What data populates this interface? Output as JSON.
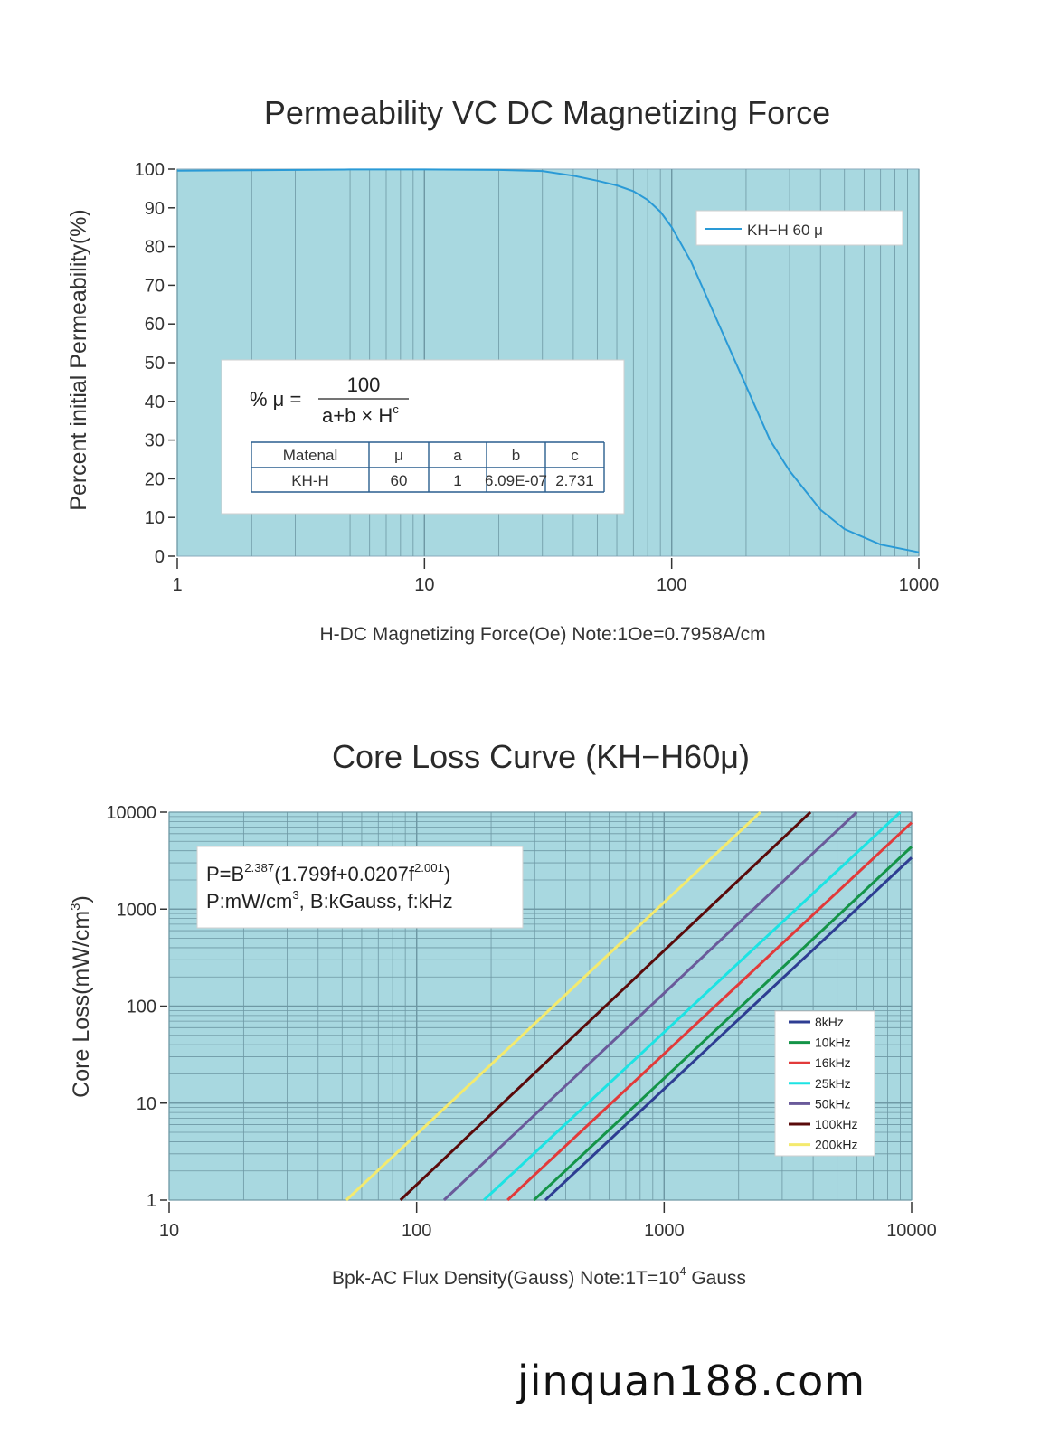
{
  "chart_data": [
    {
      "type": "line",
      "title": "Permeability VC DC Magnetizing Force",
      "xlabel": "H-DC Magnetizing Force(Oe)   Note:1Oe=0.7958A/cm",
      "ylabel": "Percent  initial  Permeability(%)",
      "xscale": "log",
      "xlim": [
        1,
        1000
      ],
      "ylim": [
        0,
        100
      ],
      "xticks": [
        "1",
        "10",
        "100",
        "1000"
      ],
      "yticks": [
        "100",
        "90",
        "80",
        "70",
        "60",
        "50",
        "40",
        "30",
        "20",
        "10",
        "0"
      ],
      "legend_position": "top-right",
      "series": [
        {
          "name": "KH−H 60 μ",
          "color": "#2a9ad6",
          "x": [
            1,
            2,
            5,
            10,
            20,
            30,
            40,
            50,
            60,
            70,
            80,
            90,
            100,
            120,
            150,
            200,
            250,
            300,
            400,
            500,
            700,
            1000
          ],
          "y": [
            99.6,
            99.7,
            99.9,
            99.9,
            99.8,
            99.5,
            98.3,
            97.0,
            95.8,
            94.3,
            92.0,
            89.0,
            85.0,
            76.0,
            62.0,
            44.0,
            30.0,
            22.0,
            12.0,
            7.0,
            3.0,
            1.0
          ]
        }
      ],
      "formula": {
        "lhs": "% μ  =",
        "numerator": "100",
        "denominator": "a+b × H",
        "denominator_sup": "c"
      },
      "param_table": {
        "headers": [
          "Matenal",
          "μ",
          "a",
          "b",
          "c"
        ],
        "row": [
          "KH-H",
          "60",
          "1",
          "6.09E-07",
          "2.731"
        ]
      }
    },
    {
      "type": "line",
      "title": "Core Loss Curve (KH−H60μ)",
      "xlabel": "Bpk-AC Flux Density(Gauss)  Note:1T=10",
      "xlabel_sup": "4",
      "xlabel_suffix": " Gauss",
      "ylabel": "Core Loss(mW/cm",
      "ylabel_sup": "3",
      "ylabel_suffix": ")",
      "xscale": "log",
      "yscale": "log",
      "xlim": [
        10,
        10000
      ],
      "ylim": [
        1,
        10000
      ],
      "xticks": [
        "10",
        "100",
        "1000",
        "10000"
      ],
      "yticks": [
        "10000",
        "1000",
        "100",
        "10",
        "1"
      ],
      "legend_position": "lower-right",
      "formula_lines": [
        {
          "parts": [
            "P=B",
            "2.387",
            "(1.799f+0.0207f",
            "2.001",
            ")"
          ]
        },
        {
          "parts": [
            "P:mW/cm",
            "3",
            ", B:kGauss, f:kHz"
          ]
        }
      ],
      "series": [
        {
          "name": "8kHz",
          "color": "#2e3d92",
          "x": [
            331,
            10000
          ],
          "y": [
            1,
            3400
          ]
        },
        {
          "name": "10kHz",
          "color": "#149448",
          "x": [
            298,
            10000
          ],
          "y": [
            1,
            4400
          ]
        },
        {
          "name": "16kHz",
          "color": "#e23a3a",
          "x": [
            233,
            10000
          ],
          "y": [
            1,
            7800
          ]
        },
        {
          "name": "25kHz",
          "color": "#1ce3e3",
          "x": [
            187,
            9000
          ],
          "y": [
            1,
            10000
          ]
        },
        {
          "name": "50kHz",
          "color": "#6a5a9a",
          "x": [
            129,
            6000
          ],
          "y": [
            1,
            10000
          ]
        },
        {
          "name": "100kHz",
          "color": "#5a0a0a",
          "x": [
            86,
            3900
          ],
          "y": [
            1,
            10000
          ]
        },
        {
          "name": "200kHz",
          "color": "#f4ea6e",
          "x": [
            52,
            2450
          ],
          "y": [
            1,
            10000
          ]
        }
      ]
    }
  ],
  "footer": {
    "site": "jinquan188.com"
  }
}
